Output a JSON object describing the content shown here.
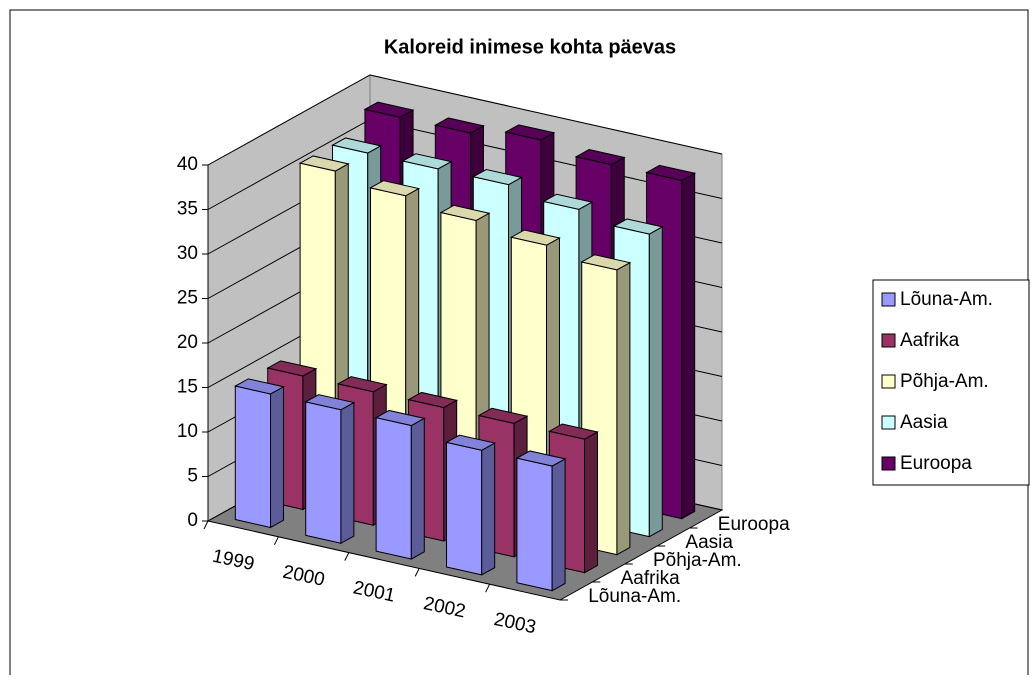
{
  "chart_data": {
    "type": "bar3d",
    "title": "Kaloreid inimese kohta päevas",
    "categories": [
      "1999",
      "2000",
      "2001",
      "2002",
      "2003"
    ],
    "series": [
      {
        "name": "Lõuna-Am.",
        "color": "#9999ff",
        "values": [
          15,
          15,
          15,
          14,
          14
        ]
      },
      {
        "name": "Aafrika",
        "color": "#993366",
        "values": [
          15,
          15,
          15,
          15,
          15
        ]
      },
      {
        "name": "Põhja-Am.",
        "color": "#ffffcc",
        "values": [
          36,
          35,
          34,
          33,
          32
        ]
      },
      {
        "name": "Aasia",
        "color": "#ccffff",
        "values": [
          36,
          36,
          36,
          35,
          34
        ]
      },
      {
        "name": "Euroopa",
        "color": "#660066",
        "values": [
          38,
          38,
          39,
          38,
          38
        ]
      }
    ],
    "ylim": [
      0,
      40
    ],
    "yticks": [
      0,
      5,
      10,
      15,
      20,
      25,
      30,
      35,
      40
    ],
    "grid": true,
    "legend": "right"
  }
}
